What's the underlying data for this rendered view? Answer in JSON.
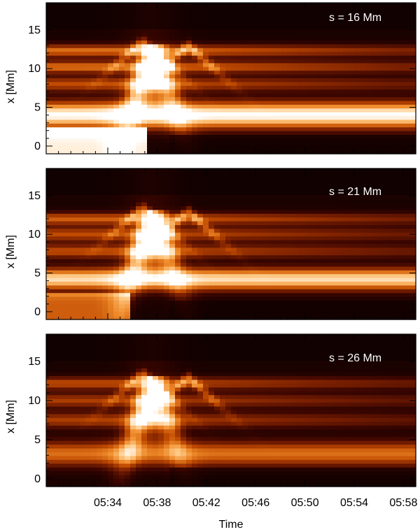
{
  "chart_data": [
    {
      "type": "heatmap",
      "annotation": "s = 16 Mm",
      "ylabel": "x [Mm]",
      "ylim": [
        -1,
        18.5
      ],
      "yticks": [
        0,
        5,
        10,
        15
      ],
      "yticklabels": [
        "0",
        "5",
        "10",
        "15"
      ],
      "xlim_min": [
        0,
        30
      ]
    },
    {
      "type": "heatmap",
      "annotation": "s = 21 Mm",
      "ylabel": "x [Mm]",
      "ylim": [
        -1,
        18.5
      ],
      "yticks": [
        0,
        5,
        10,
        15
      ],
      "yticklabels": [
        "0",
        "5",
        "10",
        "15"
      ],
      "xlim_min": [
        0,
        30
      ]
    },
    {
      "type": "heatmap",
      "annotation": "s = 26 Mm",
      "ylabel": "x [Mm]",
      "xlabel": "Time",
      "ylim": [
        -1,
        18.5
      ],
      "yticks": [
        0,
        5,
        10,
        15
      ],
      "yticklabels": [
        "0",
        "5",
        "10",
        "15"
      ],
      "xlim_min": [
        0,
        30
      ],
      "xticks_min": [
        5,
        9,
        13,
        17,
        21,
        25,
        29
      ],
      "xticklabels": [
        "05:34",
        "05:38",
        "05:42",
        "05:46",
        "05:50",
        "05:54",
        "05:58"
      ]
    }
  ],
  "colors": {
    "colormap": [
      "#0b0000",
      "#3a0500",
      "#7a1f00",
      "#c04a00",
      "#ee8a2a",
      "#ffc884",
      "#ffffff"
    ],
    "axes": "#000000",
    "annotation": "#ffffff"
  }
}
